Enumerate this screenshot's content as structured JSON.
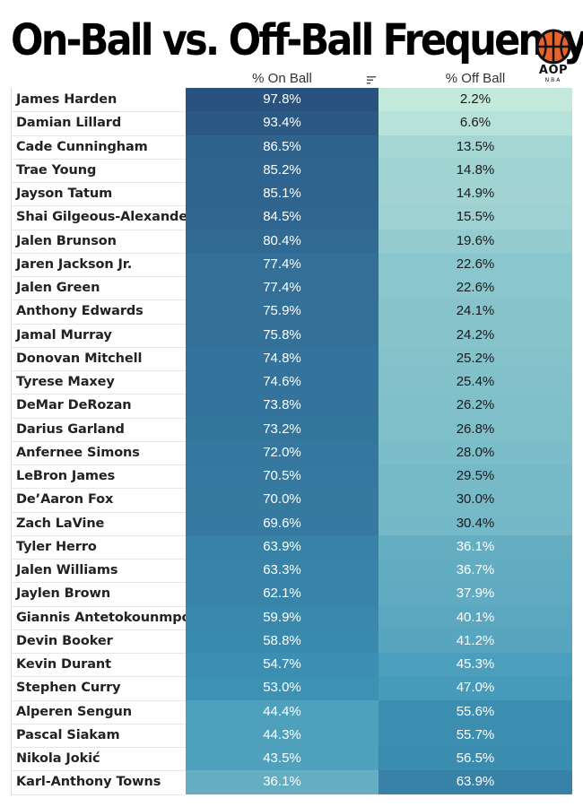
{
  "title": "On-Ball vs. Off-Ball Frequency",
  "logo": {
    "abbr": "AOP",
    "league": "NBA"
  },
  "chart_data": {
    "type": "table",
    "columns": [
      "% On Ball",
      "% Off Ball"
    ],
    "sorted_by": "% On Ball",
    "sort_order": "descending",
    "colors": {
      "high": "#2a527f",
      "mid": "#3e96b8",
      "low": "#c4eadc"
    },
    "rows": [
      {
        "player": "James Harden",
        "on_ball": "97.8%",
        "off_ball": "2.2%"
      },
      {
        "player": "Damian Lillard",
        "on_ball": "93.4%",
        "off_ball": "6.6%"
      },
      {
        "player": "Cade Cunningham",
        "on_ball": "86.5%",
        "off_ball": "13.5%"
      },
      {
        "player": "Trae Young",
        "on_ball": "85.2%",
        "off_ball": "14.8%"
      },
      {
        "player": "Jayson Tatum",
        "on_ball": "85.1%",
        "off_ball": "14.9%"
      },
      {
        "player": "Shai Gilgeous-Alexander",
        "on_ball": "84.5%",
        "off_ball": "15.5%"
      },
      {
        "player": "Jalen Brunson",
        "on_ball": "80.4%",
        "off_ball": "19.6%"
      },
      {
        "player": "Jaren Jackson Jr.",
        "on_ball": "77.4%",
        "off_ball": "22.6%"
      },
      {
        "player": "Jalen Green",
        "on_ball": "77.4%",
        "off_ball": "22.6%"
      },
      {
        "player": "Anthony Edwards",
        "on_ball": "75.9%",
        "off_ball": "24.1%"
      },
      {
        "player": "Jamal Murray",
        "on_ball": "75.8%",
        "off_ball": "24.2%"
      },
      {
        "player": "Donovan Mitchell",
        "on_ball": "74.8%",
        "off_ball": "25.2%"
      },
      {
        "player": "Tyrese Maxey",
        "on_ball": "74.6%",
        "off_ball": "25.4%"
      },
      {
        "player": "DeMar DeRozan",
        "on_ball": "73.8%",
        "off_ball": "26.2%"
      },
      {
        "player": "Darius Garland",
        "on_ball": "73.2%",
        "off_ball": "26.8%"
      },
      {
        "player": "Anfernee Simons",
        "on_ball": "72.0%",
        "off_ball": "28.0%"
      },
      {
        "player": "LeBron James",
        "on_ball": "70.5%",
        "off_ball": "29.5%"
      },
      {
        "player": "De’Aaron Fox",
        "on_ball": "70.0%",
        "off_ball": "30.0%"
      },
      {
        "player": "Zach LaVine",
        "on_ball": "69.6%",
        "off_ball": "30.4%"
      },
      {
        "player": "Tyler Herro",
        "on_ball": "63.9%",
        "off_ball": "36.1%"
      },
      {
        "player": "Jalen Williams",
        "on_ball": "63.3%",
        "off_ball": "36.7%"
      },
      {
        "player": "Jaylen Brown",
        "on_ball": "62.1%",
        "off_ball": "37.9%"
      },
      {
        "player": "Giannis Antetokounmpo",
        "on_ball": "59.9%",
        "off_ball": "40.1%"
      },
      {
        "player": "Devin Booker",
        "on_ball": "58.8%",
        "off_ball": "41.2%"
      },
      {
        "player": "Kevin Durant",
        "on_ball": "54.7%",
        "off_ball": "45.3%"
      },
      {
        "player": "Stephen Curry",
        "on_ball": "53.0%",
        "off_ball": "47.0%"
      },
      {
        "player": "Alperen Sengun",
        "on_ball": "44.4%",
        "off_ball": "55.6%"
      },
      {
        "player": "Pascal Siakam",
        "on_ball": "44.3%",
        "off_ball": "55.7%"
      },
      {
        "player": "Nikola Jokić",
        "on_ball": "43.5%",
        "off_ball": "56.5%"
      },
      {
        "player": "Karl-Anthony Towns",
        "on_ball": "36.1%",
        "off_ball": "63.9%"
      }
    ]
  }
}
